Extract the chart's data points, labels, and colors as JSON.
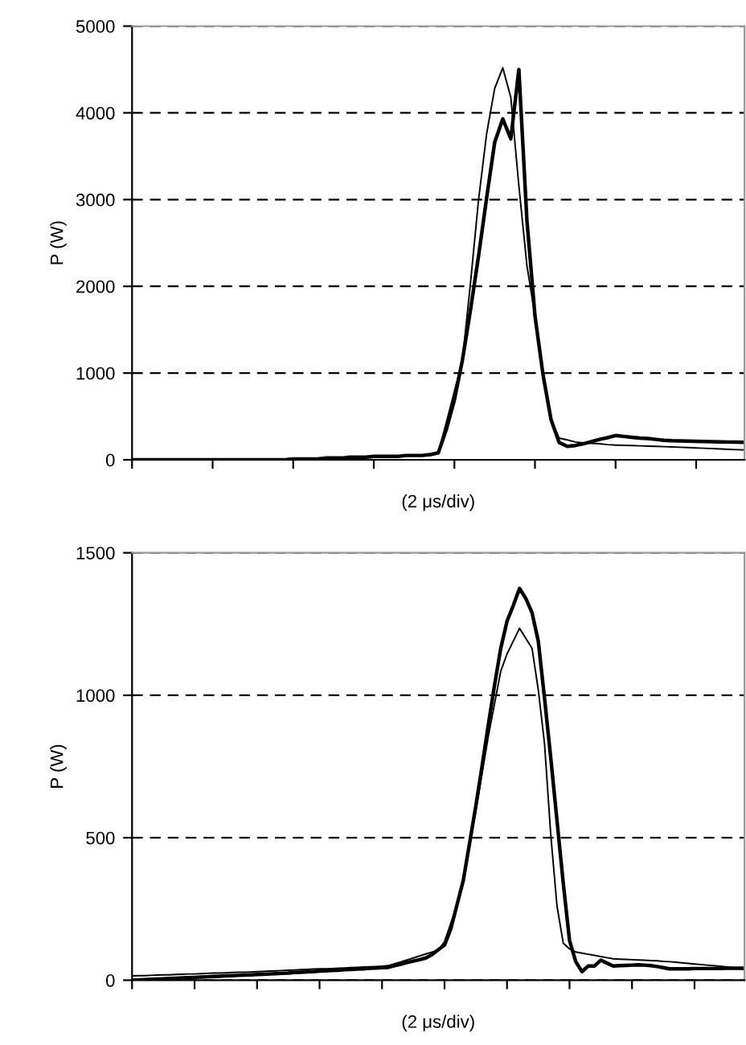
{
  "chart_data": [
    {
      "type": "line",
      "xlabel": "(2 μs/div)",
      "ylabel": "P (W)",
      "ylim": [
        0,
        5000
      ],
      "yticks": [
        0,
        1000,
        2000,
        3000,
        4000,
        5000
      ],
      "grid": "y",
      "categories": [
        null,
        null,
        null,
        null,
        null,
        null,
        null,
        null,
        null,
        null,
        null,
        null,
        null,
        null,
        null,
        null,
        null,
        null,
        null,
        null,
        null,
        null,
        null,
        null,
        null,
        null,
        null,
        null,
        null,
        null,
        null,
        null,
        null,
        null,
        null,
        null,
        null,
        null,
        null,
        null,
        null,
        null,
        null,
        null,
        null,
        null,
        null,
        null,
        null,
        null,
        null,
        null,
        null,
        null,
        null,
        null,
        null,
        null,
        null,
        null,
        null,
        null,
        null,
        null,
        null,
        null,
        null,
        null,
        null,
        null,
        null,
        null,
        null,
        null,
        null,
        null,
        null
      ],
      "series": [
        {
          "color": "#000000",
          "values": [
            0,
            0,
            0,
            0,
            0,
            0,
            0,
            0,
            0,
            0,
            0,
            0,
            0,
            0,
            0,
            0,
            0,
            0,
            0,
            0,
            10,
            10,
            10,
            10,
            20,
            20,
            20,
            30,
            30,
            30,
            40,
            40,
            40,
            40,
            50,
            50,
            50,
            60,
            80,
            350,
            690,
            1150,
            1730,
            2350,
            3020,
            3660,
            3930,
            3700,
            4500,
            2760,
            1660,
            980,
            460,
            200,
            155,
            165,
            185,
            210,
            235,
            255,
            280,
            270,
            260,
            250,
            245,
            235,
            225,
            220,
            218,
            216,
            213,
            211,
            209,
            207,
            205,
            203,
            201
          ]
        },
        {
          "color": "#000000",
          "values": [
            0,
            0,
            0,
            0,
            0,
            0,
            0,
            0,
            0,
            0,
            0,
            0,
            0,
            0,
            0,
            0,
            0,
            0,
            0,
            0,
            10,
            10,
            10,
            10,
            20,
            20,
            20,
            30,
            30,
            30,
            40,
            40,
            40,
            40,
            50,
            50,
            50,
            60,
            80,
            430,
            790,
            1150,
            2040,
            3000,
            3760,
            4280,
            4520,
            4180,
            3160,
            2240,
            1660,
            980,
            460,
            250,
            230,
            205,
            195,
            190,
            185,
            175,
            170,
            167,
            164,
            161,
            158,
            155,
            152,
            149,
            145,
            141,
            137,
            133,
            129,
            125,
            121,
            117,
            113
          ]
        }
      ]
    },
    {
      "type": "line",
      "xlabel": "(2 μs/div)",
      "ylabel": "P (W)",
      "ylim": [
        0,
        1500
      ],
      "yticks": [
        0,
        500,
        1000,
        1500
      ],
      "grid": "y",
      "categories": [
        null,
        null,
        null,
        null,
        null,
        null,
        null,
        null,
        null,
        null,
        null,
        null,
        null,
        null,
        null,
        null,
        null,
        null,
        null,
        null,
        null,
        null,
        null,
        null,
        null,
        null,
        null,
        null,
        null,
        null,
        null,
        null,
        null,
        null,
        null,
        null,
        null,
        null,
        null,
        null,
        null,
        null,
        null,
        null,
        null,
        null,
        null,
        null,
        null,
        null,
        null,
        null,
        null,
        null,
        null,
        null,
        null,
        null,
        null,
        null,
        null,
        null,
        null,
        null,
        null,
        null,
        null,
        null,
        null,
        null,
        null,
        null,
        null,
        null,
        null,
        null,
        null,
        null,
        null,
        null,
        null,
        null,
        null,
        null,
        null,
        null,
        null,
        null,
        null,
        null,
        null,
        null,
        null,
        null,
        null,
        null,
        null,
        null,
        null
      ],
      "series": [
        {
          "color": "#000000",
          "values": [
            0,
            1,
            2,
            3,
            4,
            5,
            6,
            7,
            8,
            9,
            10,
            11,
            12,
            13,
            14,
            15,
            16,
            17,
            18,
            19,
            20,
            21,
            22,
            23,
            24,
            25,
            27,
            28,
            29,
            30,
            32,
            33,
            34,
            35,
            37,
            38,
            39,
            40,
            42,
            43,
            44,
            45,
            51,
            56,
            62,
            67,
            72,
            78,
            90,
            107,
            123,
            180,
            265,
            350,
            480,
            610,
            750,
            895,
            1035,
            1165,
            1260,
            1315,
            1375,
            1340,
            1290,
            1190,
            990,
            780,
            560,
            340,
            140,
            65,
            30,
            50,
            50,
            70,
            60,
            50,
            51,
            52,
            53,
            54,
            53,
            51,
            48,
            44,
            40,
            40,
            40,
            40,
            41,
            41,
            41,
            41,
            41,
            42,
            42,
            42,
            42
          ]
        },
        {
          "color": "#000000",
          "values": [
            15,
            16,
            16,
            17,
            18,
            19,
            19,
            20,
            21,
            22,
            22,
            23,
            24,
            25,
            25,
            26,
            27,
            28,
            28,
            29,
            30,
            31,
            32,
            33,
            34,
            35,
            36,
            37,
            38,
            39,
            40,
            40,
            41,
            42,
            43,
            44,
            45,
            46,
            47,
            48,
            49,
            51,
            58,
            64,
            71,
            78,
            85,
            92,
            99,
            106,
            135,
            200,
            260,
            350,
            470,
            595,
            725,
            855,
            970,
            1085,
            1145,
            1190,
            1235,
            1200,
            1165,
            1020,
            830,
            510,
            260,
            130,
            110,
            99,
            95,
            91,
            87,
            83,
            79,
            75,
            74,
            73,
            72,
            71,
            70,
            69,
            68,
            66,
            65,
            63,
            61,
            59,
            57,
            55,
            53,
            51,
            49,
            47,
            44,
            41,
            38
          ]
        }
      ]
    }
  ]
}
